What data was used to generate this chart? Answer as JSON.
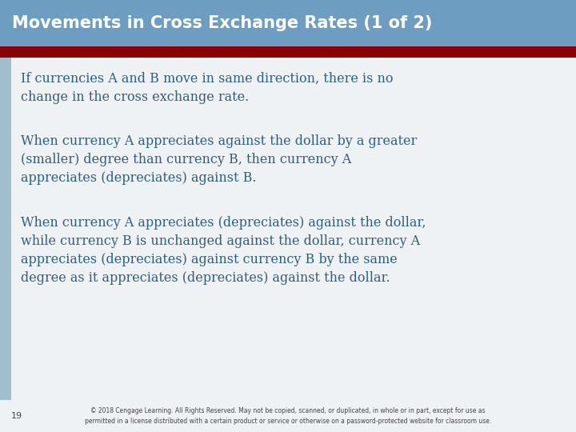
{
  "title": "Movements in Cross Exchange Rates (1 of 2)",
  "title_bg_color": "#6d9ec2",
  "title_text_color": "#ffffff",
  "accent_bar_color": "#8b0000",
  "left_bar_color": "#a0bfcc",
  "body_bg_color": "#eef2f5",
  "body_text_color": "#2e5f7a",
  "slide_bg_color": "#d6e3ec",
  "footer_bg_color": "#eef2f5",
  "bullet1": "If currencies A and B move in same direction, there is no\nchange in the cross exchange rate.",
  "bullet2": "When currency A appreciates against the dollar by a greater\n(smaller) degree than currency B, then currency A\nappreciates (depreciates) against B.",
  "bullet3": "When currency A appreciates (depreciates) against the dollar,\nwhile currency B is unchanged against the dollar, currency A\nappreciates (depreciates) against currency B by the same\ndegree as it appreciates (depreciates) against the dollar.",
  "page_number": "19",
  "footer": "© 2018 Cengage Learning. All Rights Reserved. May not be copied, scanned, or duplicated, in whole or in part, except for use as\npermitted in a license distributed with a certain product or service or otherwise on a password-protected website for classroom use.",
  "footer_text_color": "#444444",
  "title_fontsize": 15,
  "body_fontsize": 11.5,
  "footer_fontsize": 5.5,
  "page_num_fontsize": 8
}
